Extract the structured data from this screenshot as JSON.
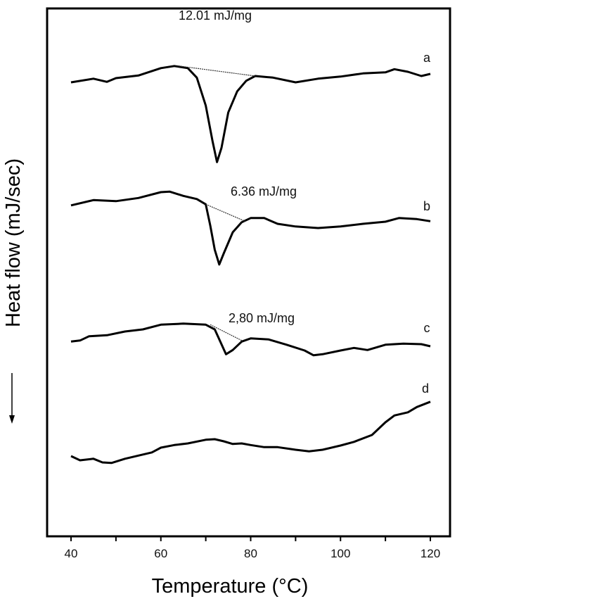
{
  "chart_data": {
    "type": "line",
    "xlabel": "Temperature (°C)",
    "ylabel": "Heat flow (mJ/sec)",
    "xlim": [
      35,
      125
    ],
    "ylim": [
      0,
      100
    ],
    "x_ticks": [
      "40",
      "60",
      "80",
      "100",
      "120"
    ],
    "y_ticks_shown": false,
    "grid": false,
    "color": "#000000",
    "series": [
      {
        "name": "a",
        "x": [
          40,
          45,
          48,
          50,
          55,
          60,
          63,
          66,
          68,
          70,
          71.5,
          72.5,
          73.5,
          75,
          77,
          79,
          81,
          85,
          90,
          95,
          100,
          105,
          110,
          112,
          115,
          118,
          120
        ],
        "y": [
          86.0,
          86.7,
          86.1,
          86.8,
          87.3,
          88.7,
          89.1,
          88.7,
          86.9,
          81.6,
          74.9,
          70.9,
          73.6,
          80.3,
          84.3,
          86.3,
          87.2,
          86.9,
          86.0,
          86.7,
          87.1,
          87.7,
          87.9,
          88.5,
          88.0,
          87.2,
          87.6
        ],
        "baseline": {
          "x": [
            64,
            81
          ],
          "y": [
            89.1,
            87.2
          ]
        },
        "annotation": "12.01 mJ/mg"
      },
      {
        "name": "b",
        "x": [
          40,
          45,
          50,
          55,
          60,
          62,
          65,
          68,
          70,
          71,
          72,
          73,
          74,
          76,
          78,
          80,
          83,
          86,
          90,
          95,
          100,
          105,
          110,
          113,
          117,
          120
        ],
        "y": [
          62.7,
          63.7,
          63.5,
          64.1,
          65.2,
          65.3,
          64.5,
          63.9,
          62.9,
          58.9,
          54.3,
          51.5,
          53.6,
          57.6,
          59.5,
          60.3,
          60.3,
          59.2,
          58.7,
          58.4,
          58.7,
          59.2,
          59.6,
          60.3,
          60.1,
          59.7
        ],
        "baseline": {
          "x": [
            70,
            79
          ],
          "y": [
            62.9,
            59.6
          ]
        },
        "annotation": "6.36 mJ/mg"
      },
      {
        "name": "c",
        "x": [
          40,
          42,
          44,
          48,
          52,
          56,
          60,
          65,
          70,
          72,
          74.5,
          76,
          78,
          80,
          84,
          88,
          92,
          94,
          96,
          100,
          103,
          106,
          110,
          114,
          118,
          120
        ],
        "y": [
          36.9,
          37.1,
          37.9,
          38.1,
          38.8,
          39.2,
          40.1,
          40.3,
          40.1,
          39.2,
          34.5,
          35.3,
          36.9,
          37.5,
          37.3,
          36.3,
          35.2,
          34.3,
          34.5,
          35.2,
          35.7,
          35.3,
          36.3,
          36.5,
          36.4,
          36.0
        ],
        "baseline": {
          "x": [
            71,
            78
          ],
          "y": [
            40.1,
            37.1
          ]
        },
        "annotation": "2,80 mJ/mg"
      },
      {
        "name": "d",
        "x": [
          40,
          42,
          45,
          47,
          49,
          52,
          55,
          58,
          60,
          63,
          66,
          70,
          72,
          74,
          76,
          78,
          80,
          83,
          86,
          90,
          93,
          96,
          100,
          103,
          107,
          110,
          112,
          115,
          117,
          120
        ],
        "y": [
          15.2,
          14.4,
          14.7,
          14.0,
          13.9,
          14.7,
          15.3,
          15.9,
          16.8,
          17.3,
          17.6,
          18.3,
          18.4,
          18.0,
          17.5,
          17.6,
          17.3,
          16.9,
          16.9,
          16.4,
          16.1,
          16.4,
          17.2,
          17.9,
          19.2,
          21.6,
          22.9,
          23.5,
          24.5,
          25.5
        ],
        "annotation": ""
      }
    ]
  }
}
